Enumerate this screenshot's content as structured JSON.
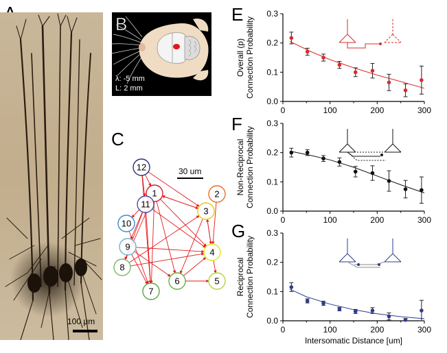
{
  "panels": {
    "A": {
      "letter": "A",
      "scale_bar_label": "100 μm"
    },
    "B": {
      "letter": "B",
      "coord_lambda": "λ: -5 mm",
      "coord_L": "L: 2 mm"
    },
    "C": {
      "letter": "C",
      "scale_bar_label": "30 um",
      "neurons": [
        {
          "id": "1",
          "color": "#d61f26"
        },
        {
          "id": "2",
          "color": "#e8702a"
        },
        {
          "id": "3",
          "color": "#e7c81c"
        },
        {
          "id": "4",
          "color": "#e2e321"
        },
        {
          "id": "5",
          "color": "#b6d43c"
        },
        {
          "id": "6",
          "color": "#6aaf3a"
        },
        {
          "id": "7",
          "color": "#5aa640"
        },
        {
          "id": "8",
          "color": "#7ab86a"
        },
        {
          "id": "9",
          "color": "#6fb4c8"
        },
        {
          "id": "10",
          "color": "#3d8ad1"
        },
        {
          "id": "11",
          "color": "#4b4fa0"
        },
        {
          "id": "12",
          "color": "#2e2f7a"
        }
      ]
    }
  },
  "chart_data": [
    {
      "panel": "E",
      "type": "line",
      "ylabel": "Overall (p)\nConnection Probability",
      "xlabel": "",
      "xlim": [
        0,
        300
      ],
      "ylim": [
        0,
        0.3
      ],
      "xticks": [
        "0",
        "100",
        "200",
        "300"
      ],
      "yticks": [
        "0.0",
        "0.1",
        "0.2",
        "0.3"
      ],
      "color": "#d42e2e",
      "x": [
        18,
        52,
        86,
        120,
        154,
        190,
        225,
        260,
        294
      ],
      "y": [
        0.217,
        0.17,
        0.15,
        0.125,
        0.1,
        0.105,
        0.065,
        0.038,
        0.073
      ],
      "err": [
        0.02,
        0.012,
        0.012,
        0.012,
        0.015,
        0.025,
        0.028,
        0.022,
        0.048
      ],
      "fit": [
        [
          15,
          0.205
        ],
        [
          60,
          0.17
        ],
        [
          100,
          0.143
        ],
        [
          150,
          0.115
        ],
        [
          200,
          0.09
        ],
        [
          250,
          0.068
        ],
        [
          300,
          0.045
        ]
      ]
    },
    {
      "panel": "F",
      "type": "line",
      "ylabel": "Non-Reciprocal\nConnection Probability",
      "xlabel": "",
      "xlim": [
        0,
        300
      ],
      "ylim": [
        0,
        0.3
      ],
      "xticks": [
        "0",
        "100",
        "200",
        "300"
      ],
      "yticks": [
        "0.0",
        "0.1",
        "0.2",
        "0.3"
      ],
      "color": "#111111",
      "x": [
        18,
        52,
        86,
        120,
        154,
        190,
        225,
        260,
        294
      ],
      "y": [
        0.2,
        0.2,
        0.18,
        0.168,
        0.135,
        0.13,
        0.103,
        0.075,
        0.072
      ],
      "err": [
        0.015,
        0.01,
        0.01,
        0.014,
        0.018,
        0.025,
        0.035,
        0.03,
        0.045
      ],
      "fit": [
        [
          15,
          0.205
        ],
        [
          60,
          0.19
        ],
        [
          100,
          0.175
        ],
        [
          150,
          0.15
        ],
        [
          200,
          0.12
        ],
        [
          250,
          0.09
        ],
        [
          300,
          0.062
        ]
      ]
    },
    {
      "panel": "G",
      "type": "line",
      "ylabel": "Reciprocal\nConnection Probability",
      "xlabel": "Intersomatic Distance [um]",
      "xlim": [
        0,
        300
      ],
      "ylim": [
        0,
        0.3
      ],
      "xticks": [
        "0",
        "100",
        "200",
        "300"
      ],
      "yticks": [
        "0.0",
        "0.1",
        "0.2",
        "0.3"
      ],
      "color": "#2d3b8f",
      "x": [
        18,
        52,
        86,
        120,
        154,
        190,
        225,
        260,
        294
      ],
      "y": [
        0.115,
        0.068,
        0.06,
        0.04,
        0.032,
        0.035,
        0.015,
        0.003,
        0.035
      ],
      "err": [
        0.015,
        0.007,
        0.007,
        0.006,
        0.007,
        0.01,
        0.012,
        0.005,
        0.035
      ],
      "fit": [
        [
          15,
          0.108
        ],
        [
          50,
          0.082
        ],
        [
          100,
          0.057
        ],
        [
          150,
          0.038
        ],
        [
          200,
          0.024
        ],
        [
          250,
          0.014
        ],
        [
          300,
          0.007
        ]
      ]
    }
  ]
}
